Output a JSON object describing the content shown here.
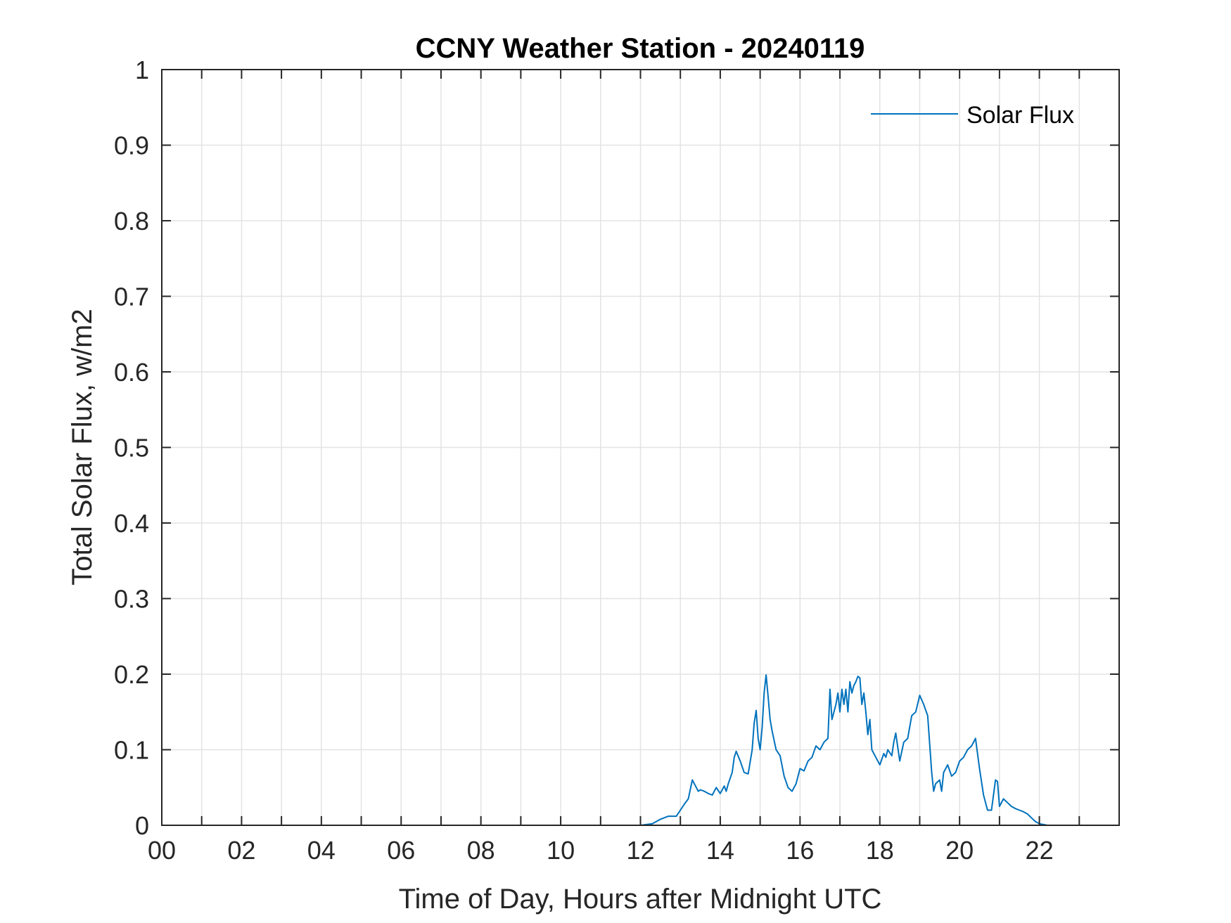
{
  "chart_data": {
    "type": "line",
    "title": "CCNY Weather Station - 20240119",
    "xlabel": "Time of Day, Hours after Midnight UTC",
    "ylabel": "Total Solar Flux, w/m2",
    "xlim": [
      0,
      24
    ],
    "ylim": [
      0,
      1
    ],
    "grid": true,
    "legend_position": "top-right",
    "x_ticks": [
      0,
      2,
      4,
      6,
      8,
      10,
      12,
      14,
      16,
      18,
      20,
      22
    ],
    "x_tick_labels": [
      "00",
      "02",
      "04",
      "06",
      "08",
      "10",
      "12",
      "14",
      "16",
      "18",
      "20",
      "22"
    ],
    "y_ticks": [
      0,
      0.1,
      0.2,
      0.3,
      0.4,
      0.5,
      0.6,
      0.7,
      0.8,
      0.9,
      1
    ],
    "y_tick_labels": [
      "0",
      "0.1",
      "0.2",
      "0.3",
      "0.4",
      "0.5",
      "0.6",
      "0.7",
      "0.8",
      "0.9",
      "1"
    ],
    "series": [
      {
        "name": "Solar Flux",
        "color": "#0072BD",
        "x": [
          0,
          12.0,
          12.3,
          12.5,
          12.7,
          12.9,
          13.0,
          13.1,
          13.2,
          13.3,
          13.4,
          13.45,
          13.5,
          13.6,
          13.7,
          13.8,
          13.9,
          14.0,
          14.1,
          14.15,
          14.2,
          14.3,
          14.35,
          14.4,
          14.5,
          14.6,
          14.7,
          14.8,
          14.85,
          14.9,
          14.95,
          15.0,
          15.05,
          15.1,
          15.15,
          15.2,
          15.25,
          15.3,
          15.4,
          15.5,
          15.6,
          15.7,
          15.8,
          15.9,
          16.0,
          16.1,
          16.2,
          16.3,
          16.4,
          16.5,
          16.6,
          16.7,
          16.75,
          16.8,
          16.9,
          16.95,
          17.0,
          17.05,
          17.1,
          17.15,
          17.2,
          17.25,
          17.3,
          17.35,
          17.4,
          17.45,
          17.5,
          17.55,
          17.6,
          17.65,
          17.7,
          17.75,
          17.8,
          17.9,
          18.0,
          18.1,
          18.15,
          18.2,
          18.3,
          18.35,
          18.4,
          18.5,
          18.6,
          18.7,
          18.8,
          18.9,
          19.0,
          19.1,
          19.2,
          19.3,
          19.35,
          19.4,
          19.5,
          19.55,
          19.6,
          19.7,
          19.8,
          19.9,
          20.0,
          20.1,
          20.2,
          20.3,
          20.4,
          20.5,
          20.6,
          20.7,
          20.8,
          20.9,
          20.95,
          21.0,
          21.1,
          21.2,
          21.3,
          21.4,
          21.5,
          21.6,
          21.7,
          21.8,
          21.9,
          22.0,
          22.1,
          22.2,
          22.3,
          22.5,
          22.7,
          24.0
        ],
        "values": [
          0,
          0,
          0.002,
          0.008,
          0.012,
          0.012,
          0.02,
          0.028,
          0.035,
          0.06,
          0.05,
          0.045,
          0.047,
          0.045,
          0.042,
          0.04,
          0.05,
          0.042,
          0.052,
          0.045,
          0.055,
          0.07,
          0.09,
          0.098,
          0.085,
          0.07,
          0.068,
          0.1,
          0.135,
          0.152,
          0.115,
          0.1,
          0.13,
          0.175,
          0.199,
          0.17,
          0.14,
          0.125,
          0.1,
          0.092,
          0.065,
          0.05,
          0.045,
          0.055,
          0.075,
          0.072,
          0.085,
          0.09,
          0.105,
          0.1,
          0.11,
          0.115,
          0.18,
          0.14,
          0.16,
          0.175,
          0.15,
          0.18,
          0.16,
          0.18,
          0.15,
          0.19,
          0.175,
          0.185,
          0.19,
          0.197,
          0.195,
          0.16,
          0.175,
          0.15,
          0.12,
          0.14,
          0.1,
          0.09,
          0.08,
          0.095,
          0.09,
          0.1,
          0.092,
          0.11,
          0.122,
          0.085,
          0.11,
          0.115,
          0.145,
          0.15,
          0.172,
          0.16,
          0.145,
          0.07,
          0.045,
          0.055,
          0.06,
          0.045,
          0.07,
          0.08,
          0.065,
          0.07,
          0.085,
          0.09,
          0.1,
          0.105,
          0.115,
          0.075,
          0.04,
          0.02,
          0.02,
          0.06,
          0.058,
          0.025,
          0.035,
          0.03,
          0.025,
          0.022,
          0.02,
          0.018,
          0.015,
          0.01,
          0.005,
          0.002,
          0.001,
          0,
          0,
          0,
          0,
          0
        ]
      }
    ]
  }
}
